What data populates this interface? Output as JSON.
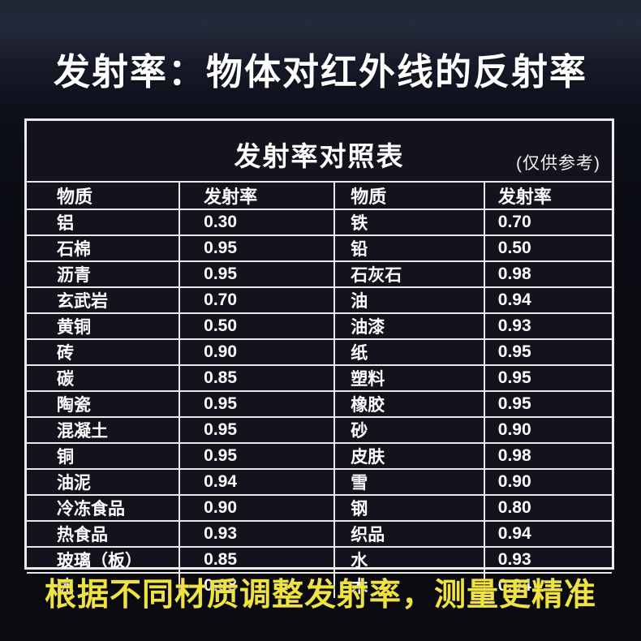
{
  "page": {
    "main_title": "发射率：物体对红外线的反射率",
    "footer_note": "根据不同材质调整发射率，测量更精准"
  },
  "card": {
    "title": "发射率对照表",
    "note": "(仅供参考)"
  },
  "table": {
    "headers": [
      "物质",
      "发射率",
      "物质",
      "发射率"
    ],
    "rows": [
      [
        "铝",
        "0.30",
        "铁",
        "0.70"
      ],
      [
        "石棉",
        "0.95",
        "铅",
        "0.50"
      ],
      [
        "沥青",
        "0.95",
        "石灰石",
        "0.98"
      ],
      [
        "玄武岩",
        "0.70",
        "油",
        "0.94"
      ],
      [
        "黄铜",
        "0.50",
        "油漆",
        "0.93"
      ],
      [
        "砖",
        "0.90",
        "纸",
        "0.95"
      ],
      [
        "碳",
        "0.85",
        "塑料",
        "0.95"
      ],
      [
        "陶瓷",
        "0.95",
        "橡胶",
        "0.95"
      ],
      [
        "混凝土",
        "0.95",
        "砂",
        "0.90"
      ],
      [
        "铜",
        "0.95",
        "皮肤",
        "0.98"
      ],
      [
        "油泥",
        "0.94",
        "雪",
        "0.90"
      ],
      [
        "冷冻食品",
        "0.90",
        "钢",
        "0.80"
      ],
      [
        "热食品",
        "0.93",
        "织品",
        "0.94"
      ],
      [
        "玻璃（板）",
        "0.85",
        "水",
        "0.93"
      ],
      [
        "冰",
        "0.98",
        "木",
        "0.94"
      ]
    ]
  },
  "colors": {
    "accent_yellow": "#efe243",
    "background_dark": "#0a0b12",
    "table_line": "#e8e8e8",
    "text_white": "#ffffff"
  }
}
